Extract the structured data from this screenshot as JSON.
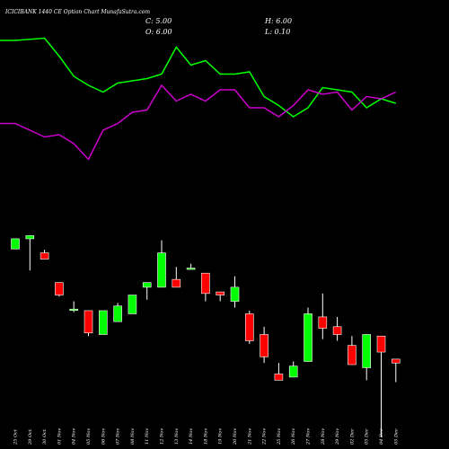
{
  "header": {
    "title": "ICICIBANK 1440  CE Option  Chart MunafaSutra.com",
    "c_label": "C: 5.00",
    "o_label": "O: 6.00",
    "h_label": "H: 6.00",
    "l_label": "L: 0.10"
  },
  "chart_data": [
    {
      "type": "line",
      "x": [
        "25 Oct",
        "29 Oct",
        "30 Oct",
        "01 Nov",
        "04 Nov",
        "05 Nov",
        "06 Nov",
        "07 Nov",
        "08 Nov",
        "11 Nov",
        "12 Nov",
        "13 Nov",
        "14 Nov",
        "18 Nov",
        "19 Nov",
        "20 Nov",
        "21 Nov",
        "22 Nov",
        "25 Nov",
        "26 Nov",
        "27 Nov",
        "28 Nov",
        "29 Nov",
        "02 Dec",
        "03 Dec",
        "04 Dec",
        "05 Dec"
      ],
      "series": [
        {
          "color": "#00ff00",
          "values": [
            82,
            82,
            83,
            75,
            66,
            62,
            59,
            63,
            64,
            65,
            67,
            79,
            71,
            73,
            67,
            67,
            68,
            57,
            53,
            48,
            52,
            61,
            60,
            59,
            52,
            56,
            54
          ]
        },
        {
          "color": "#cc00cc",
          "values": [
            45,
            45,
            39,
            40,
            36,
            29,
            42,
            45,
            50,
            51,
            62,
            55,
            58,
            55,
            60,
            60,
            52,
            52,
            48,
            53,
            60,
            58,
            59,
            51,
            57,
            56,
            59
          ]
        }
      ]
    },
    {
      "type": "candlestick",
      "x": [
        "25 Oct",
        "29 Oct",
        "30 Oct",
        "01 Nov",
        "04 Nov",
        "05 Nov",
        "06 Nov",
        "07 Nov",
        "08 Nov",
        "11 Nov",
        "12 Nov",
        "13 Nov",
        "14 Nov",
        "18 Nov",
        "19 Nov",
        "20 Nov",
        "21 Nov",
        "22 Nov",
        "25 Nov",
        "26 Nov",
        "27 Nov",
        "28 Nov",
        "29 Nov",
        "02 Dec",
        "03 Dec",
        "04 Dec",
        "05 Dec"
      ],
      "ohlc": [
        [
          34.2,
          36.8,
          34.2,
          36.8
        ],
        [
          36.8,
          37.6,
          28.7,
          37.6
        ],
        [
          33.2,
          34.0,
          31.6,
          31.6
        ],
        [
          25.6,
          25.6,
          22.0,
          22.4
        ],
        [
          18.8,
          20.8,
          18.0,
          18.8
        ],
        [
          18.4,
          18.4,
          11.9,
          12.7
        ],
        [
          12.3,
          18.4,
          12.3,
          18.4
        ],
        [
          15.6,
          20.4,
          15.6,
          19.6
        ],
        [
          17.6,
          22.4,
          17.6,
          22.4
        ],
        [
          24.4,
          25.6,
          21.2,
          25.6
        ],
        [
          24.4,
          36.4,
          24.4,
          33.2
        ],
        [
          26.4,
          29.6,
          24.4,
          24.4
        ],
        [
          29.3,
          30.4,
          29.0,
          29.3
        ],
        [
          28.0,
          28.0,
          20.8,
          22.8
        ],
        [
          23.2,
          23.2,
          20.8,
          22.4
        ],
        [
          20.8,
          27.2,
          19.2,
          24.4
        ],
        [
          17.6,
          18.4,
          9.9,
          10.7
        ],
        [
          12.3,
          14.3,
          5.0,
          6.6
        ],
        [
          2.2,
          5.0,
          0.6,
          0.6
        ],
        [
          1.4,
          5.4,
          1.4,
          4.2
        ],
        [
          5.4,
          19.2,
          5.4,
          17.6
        ],
        [
          16.8,
          22.8,
          11.1,
          13.9
        ],
        [
          14.3,
          16.8,
          10.7,
          12.3
        ],
        [
          9.5,
          11.9,
          4.6,
          4.6
        ],
        [
          3.8,
          12.3,
          0.6,
          12.3
        ],
        [
          11.9,
          11.9,
          -14.0,
          7.8
        ],
        [
          6.0,
          6.0,
          0.1,
          5.0
        ]
      ]
    }
  ]
}
